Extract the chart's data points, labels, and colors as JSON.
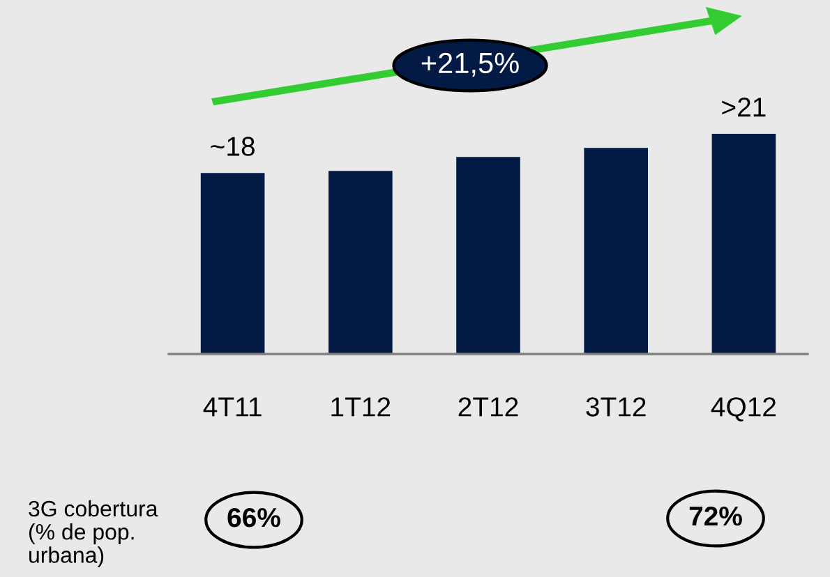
{
  "chart_data": {
    "type": "bar",
    "ylim": [
      0,
      35.2
    ],
    "tick_labels": "x",
    "categories": [
      "4T11",
      "1T12",
      "2T12",
      "3T12",
      "4Q12"
    ],
    "values": [
      18,
      18.2,
      19.6,
      20.5,
      21.9
    ],
    "value_labels": [
      "~18",
      null,
      null,
      null,
      ">21"
    ],
    "color": "#021a44",
    "annotations": [
      "+21,5%",
      "3G cobertura\n(% de pop.\nurbana)",
      "66%",
      "72%"
    ]
  }
}
